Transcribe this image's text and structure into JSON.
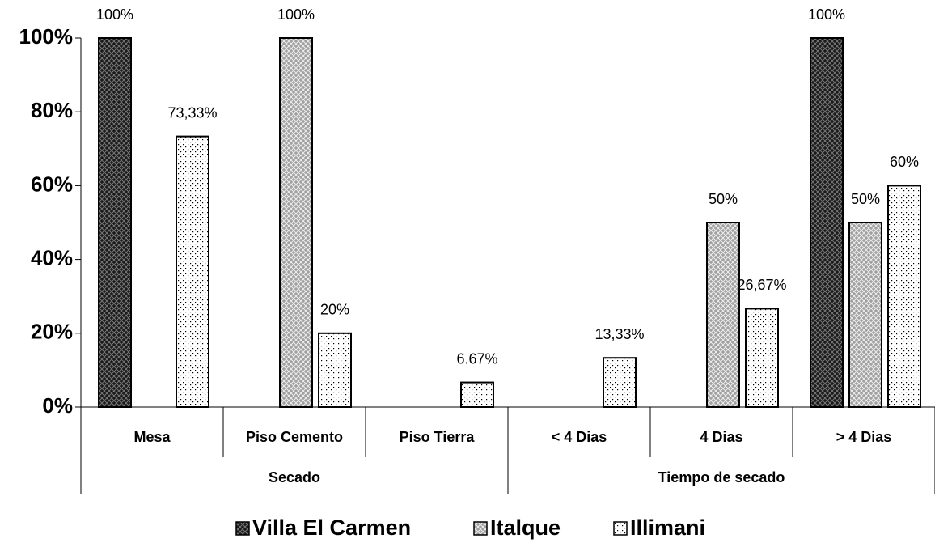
{
  "chart_data": {
    "type": "bar",
    "categories": [
      "Mesa",
      "Piso Cemento",
      "Piso Tierra",
      "< 4 Dias",
      "4 Dias",
      "> 4 Dias"
    ],
    "groups": [
      {
        "name": "Secado",
        "size": 3
      },
      {
        "name": "Tiempo de secado",
        "size": 3
      }
    ],
    "series": [
      {
        "name": "Villa El Carmen",
        "color": "#1a1a1a",
        "pattern": "crosshatch",
        "values": [
          100,
          null,
          null,
          null,
          null,
          100
        ],
        "value_labels": [
          "100%",
          null,
          null,
          null,
          null,
          "100%"
        ]
      },
      {
        "name": "Italque",
        "color": "#a0a0a0",
        "pattern": "crosshatch",
        "values": [
          null,
          100,
          null,
          null,
          50,
          50
        ],
        "value_labels": [
          null,
          "100%",
          null,
          null,
          "50%",
          "50%"
        ]
      },
      {
        "name": "Illimani",
        "color": "#ffffff",
        "pattern": "dots",
        "values": [
          73.33,
          20,
          6.67,
          13.33,
          26.67,
          60
        ],
        "value_labels": [
          "73,33%",
          "20%",
          "6.67%",
          "13,33%",
          "26,67%",
          "60%"
        ]
      }
    ],
    "ylim": [
      0,
      100
    ],
    "yticks": [
      {
        "value": 0,
        "label": "0%"
      },
      {
        "value": 20,
        "label": "20%"
      },
      {
        "value": 40,
        "label": "40%"
      },
      {
        "value": 60,
        "label": "60%"
      },
      {
        "value": 80,
        "label": "80%"
      },
      {
        "value": 100,
        "label": "100%"
      }
    ],
    "legend": "bottom"
  }
}
